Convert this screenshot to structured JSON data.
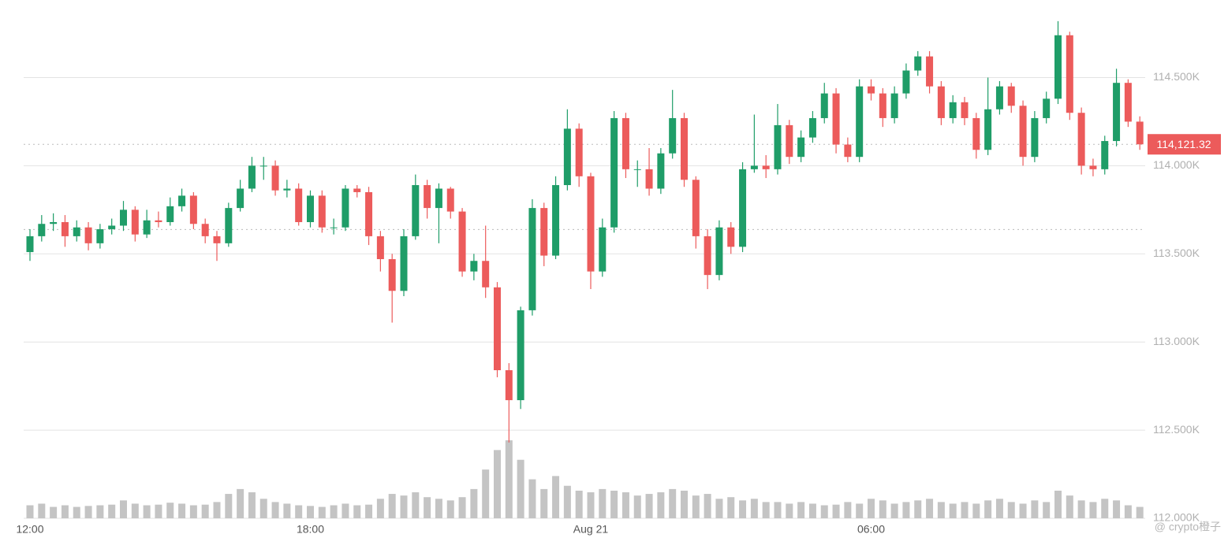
{
  "chart_data": {
    "type": "candlestick",
    "x": [
      0,
      0.25,
      0.5,
      0.75,
      1,
      1.25,
      1.5,
      1.75,
      2,
      2.25,
      2.5,
      2.75,
      3,
      3.25,
      3.5,
      3.75,
      4,
      4.25,
      4.5,
      4.75,
      5,
      5.25,
      5.5,
      5.75,
      6,
      6.25,
      6.5,
      6.75,
      7,
      7.25,
      7.5,
      7.75,
      8,
      8.25,
      8.5,
      8.75,
      9,
      9.25,
      9.5,
      9.75,
      10,
      10.25,
      10.5,
      10.75,
      11,
      11.25,
      11.5,
      11.75,
      12,
      12.25,
      12.5,
      12.75,
      13,
      13.25,
      13.5,
      13.75,
      14,
      14.25,
      14.5,
      14.75,
      15,
      15.25,
      15.5,
      15.75,
      16,
      16.25,
      16.5,
      16.75,
      17,
      17.25,
      17.5,
      17.75,
      18,
      18.25,
      18.5,
      18.75,
      19,
      19.25,
      19.5,
      19.75,
      20,
      20.25,
      20.5,
      20.75,
      21,
      21.25,
      21.5,
      21.75,
      22,
      22.25,
      22.5,
      22.75,
      23,
      23.25,
      23.5,
      23.75
    ],
    "open": [
      113510,
      113600,
      113670,
      113680,
      113600,
      113650,
      113560,
      113640,
      113660,
      113750,
      113610,
      113690,
      113680,
      113770,
      113830,
      113670,
      113600,
      113560,
      113760,
      113870,
      114000,
      114000,
      113860,
      113870,
      113680,
      113830,
      113650,
      113650,
      113870,
      113850,
      113600,
      113470,
      113290,
      113600,
      113890,
      113760,
      113870,
      113740,
      113400,
      113460,
      113310,
      112840,
      112670,
      113180,
      113760,
      113490,
      113890,
      114210,
      113940,
      113400,
      113650,
      114270,
      113980,
      113980,
      113870,
      114070,
      114270,
      113920,
      113600,
      113380,
      113650,
      113540,
      113980,
      114000,
      113980,
      114230,
      114050,
      114160,
      114270,
      114410,
      114120,
      114050,
      114450,
      114410,
      114270,
      114410,
      114540,
      114620,
      114450,
      114270,
      114360,
      114270,
      114090,
      114320,
      114450,
      114340,
      114050,
      114270,
      114380,
      114740,
      114300,
      114000,
      113980,
      114140,
      114470,
      114250
    ],
    "close": [
      113600,
      113670,
      113680,
      113600,
      113650,
      113560,
      113640,
      113660,
      113750,
      113610,
      113690,
      113680,
      113770,
      113830,
      113670,
      113600,
      113560,
      113760,
      113870,
      114000,
      114000,
      113860,
      113870,
      113680,
      113830,
      113650,
      113650,
      113870,
      113850,
      113600,
      113470,
      113290,
      113600,
      113890,
      113760,
      113870,
      113740,
      113400,
      113460,
      113310,
      112840,
      112670,
      113180,
      113760,
      113490,
      113890,
      114210,
      113940,
      113400,
      113650,
      114270,
      113980,
      113980,
      113870,
      114070,
      114270,
      113920,
      113600,
      113380,
      113650,
      113540,
      113980,
      114000,
      113980,
      114230,
      114050,
      114160,
      114270,
      114410,
      114120,
      114050,
      114450,
      114410,
      114270,
      114410,
      114540,
      114620,
      114450,
      114270,
      114360,
      114270,
      114090,
      114320,
      114450,
      114340,
      114050,
      114270,
      114380,
      114740,
      114300,
      114000,
      113980,
      114140,
      114470,
      114250,
      114121.32
    ],
    "high": [
      113640,
      113720,
      113730,
      113720,
      113690,
      113680,
      113670,
      113700,
      113800,
      113770,
      113750,
      113740,
      113820,
      113870,
      113850,
      113700,
      113630,
      113790,
      113920,
      114050,
      114050,
      114030,
      113920,
      113900,
      113860,
      113860,
      113700,
      113890,
      113890,
      113880,
      113630,
      113500,
      113640,
      113950,
      113920,
      113900,
      113880,
      113760,
      113500,
      113660,
      113340,
      112880,
      113200,
      113810,
      113790,
      113940,
      114320,
      114240,
      113960,
      113700,
      114310,
      114300,
      114030,
      114100,
      114100,
      114430,
      114300,
      113940,
      113640,
      113690,
      113680,
      114020,
      114290,
      114060,
      114350,
      114260,
      114200,
      114310,
      114470,
      114440,
      114160,
      114490,
      114490,
      114440,
      114450,
      114580,
      114650,
      114650,
      114480,
      114400,
      114390,
      114300,
      114500,
      114480,
      114470,
      114370,
      114310,
      114420,
      114820,
      114760,
      114330,
      114040,
      114170,
      114550,
      114490,
      114280
    ],
    "low": [
      113460,
      113570,
      113630,
      113540,
      113570,
      113520,
      113530,
      113610,
      113630,
      113570,
      113590,
      113650,
      113660,
      113740,
      113640,
      113560,
      113460,
      113540,
      113740,
      113850,
      113920,
      113830,
      113820,
      113660,
      113650,
      113620,
      113610,
      113630,
      113820,
      113550,
      113400,
      113110,
      113260,
      113580,
      113700,
      113560,
      113700,
      113370,
      113350,
      113250,
      112800,
      112430,
      112620,
      113150,
      113430,
      113470,
      113860,
      113880,
      113300,
      113370,
      113620,
      113930,
      113880,
      113830,
      113840,
      114040,
      113880,
      113530,
      113300,
      113350,
      113500,
      113510,
      113960,
      113930,
      113950,
      114010,
      114020,
      114130,
      114240,
      114070,
      114020,
      114020,
      114370,
      114220,
      114240,
      114380,
      114510,
      114410,
      114230,
      114240,
      114230,
      114040,
      114060,
      114290,
      114300,
      114000,
      114020,
      114240,
      114350,
      114260,
      113950,
      113940,
      113950,
      114110,
      114220,
      114090
    ],
    "volume": [
      40,
      45,
      35,
      40,
      35,
      38,
      40,
      42,
      55,
      45,
      40,
      42,
      48,
      45,
      40,
      42,
      50,
      75,
      90,
      80,
      60,
      50,
      45,
      40,
      38,
      35,
      40,
      45,
      40,
      42,
      60,
      75,
      70,
      80,
      65,
      60,
      55,
      65,
      90,
      150,
      210,
      240,
      180,
      120,
      90,
      130,
      100,
      85,
      80,
      90,
      85,
      80,
      70,
      75,
      80,
      90,
      85,
      70,
      75,
      60,
      65,
      55,
      60,
      50,
      50,
      45,
      50,
      45,
      40,
      42,
      50,
      45,
      60,
      55,
      45,
      50,
      55,
      60,
      50,
      45,
      50,
      45,
      55,
      60,
      50,
      45,
      55,
      50,
      85,
      70,
      55,
      50,
      60,
      55,
      40,
      35
    ],
    "up_color": "#1f9d68",
    "down_color": "#ec5b5b",
    "volume_color": "#c4c4c4",
    "xlim": [
      -0.135,
      23.865
    ],
    "xticks": [
      {
        "value": 0,
        "label": "12:00"
      },
      {
        "value": 6,
        "label": "18:00"
      },
      {
        "value": 12,
        "label": "Aug 21"
      },
      {
        "value": 18,
        "label": "06:00"
      }
    ],
    "ylim": [
      112000,
      114940
    ],
    "yticks": [
      {
        "value": 112000,
        "label": "112.000K"
      },
      {
        "value": 112500,
        "label": "112.500K"
      },
      {
        "value": 113000,
        "label": "113.000K"
      },
      {
        "value": 113500,
        "label": "113.500K"
      },
      {
        "value": 114000,
        "label": "114.000K"
      },
      {
        "value": 114500,
        "label": "114.500K"
      }
    ],
    "volume_lim": [
      0,
      400
    ],
    "reference_line": 113638,
    "last_price": {
      "value": 114121.32,
      "label": "114,121.32"
    },
    "grid": true,
    "watermark": "@ crypto橙子"
  }
}
